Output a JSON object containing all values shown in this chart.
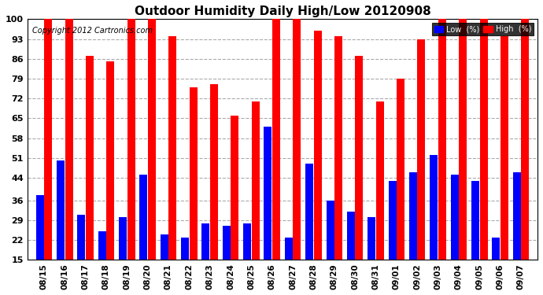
{
  "title": "Outdoor Humidity Daily High/Low 20120908",
  "copyright": "Copyright 2012 Cartronics.com",
  "dates": [
    "08/15",
    "08/16",
    "08/17",
    "08/18",
    "08/19",
    "08/20",
    "08/21",
    "08/22",
    "08/23",
    "08/24",
    "08/25",
    "08/26",
    "08/27",
    "08/28",
    "08/29",
    "08/30",
    "08/31",
    "09/01",
    "09/02",
    "09/03",
    "09/04",
    "09/05",
    "09/06",
    "09/07"
  ],
  "high": [
    100,
    100,
    87,
    85,
    100,
    100,
    94,
    76,
    77,
    66,
    71,
    100,
    100,
    96,
    94,
    87,
    71,
    79,
    93,
    100,
    100,
    100,
    94,
    100
  ],
  "low": [
    38,
    50,
    31,
    25,
    30,
    45,
    24,
    23,
    28,
    27,
    28,
    62,
    23,
    49,
    36,
    32,
    30,
    43,
    46,
    52,
    45,
    43,
    23,
    46
  ],
  "high_color": "#ff0000",
  "low_color": "#0000ff",
  "bg_color": "#ffffff",
  "plot_bg_color": "#ffffff",
  "grid_color": "#aaaaaa",
  "title_color": "#000000",
  "copyright_color": "#000000",
  "ylim": [
    15,
    100
  ],
  "yticks": [
    15,
    22,
    29,
    36,
    44,
    51,
    58,
    65,
    72,
    79,
    86,
    93,
    100
  ],
  "legend_low_label": "Low  (%)",
  "legend_high_label": "High  (%)"
}
